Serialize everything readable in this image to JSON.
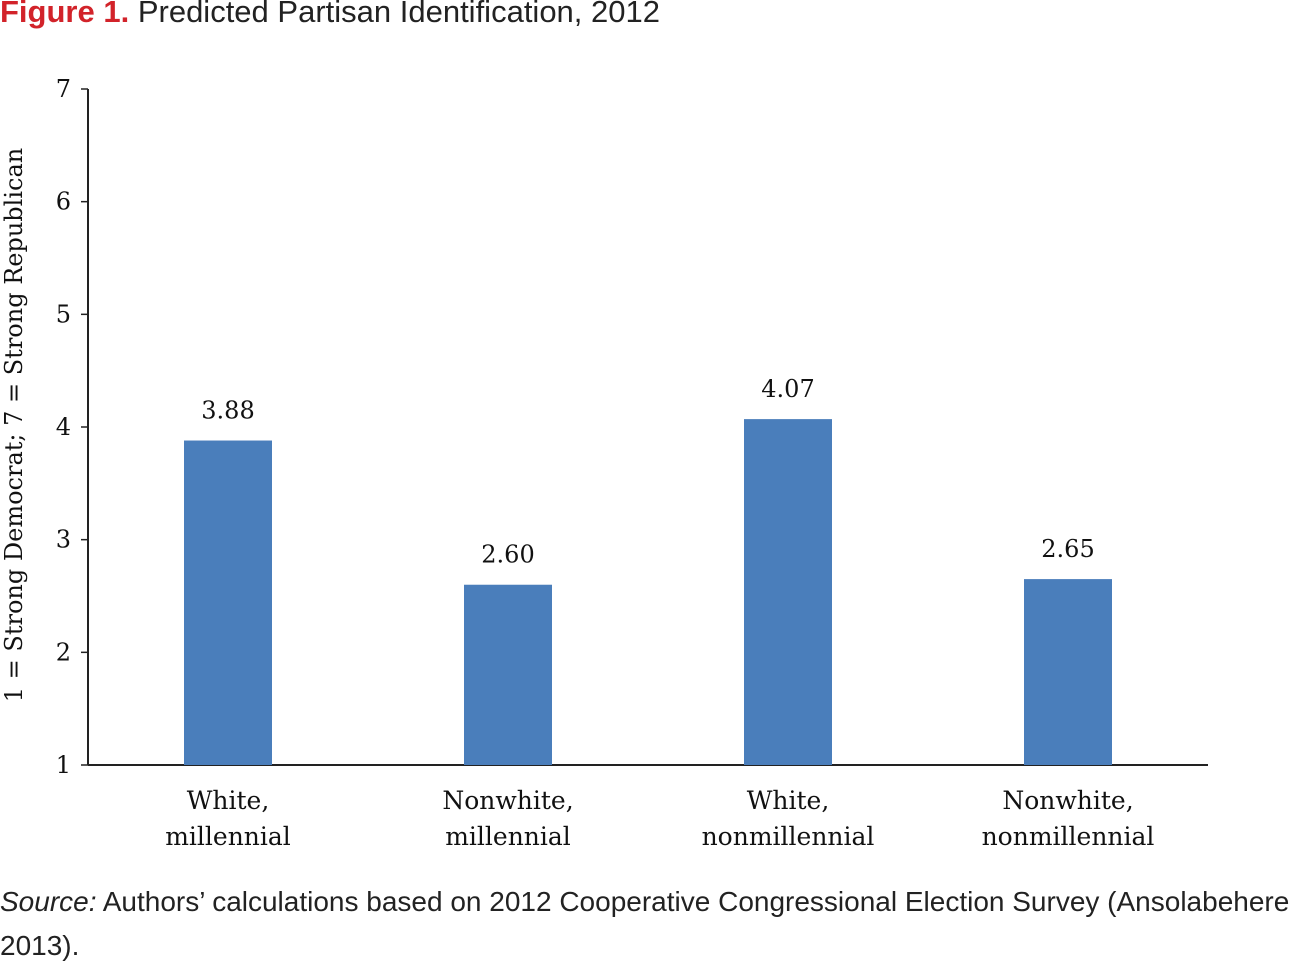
{
  "figure": {
    "label": "Figure 1.",
    "title": "Predicted Partisan Identification, 2012"
  },
  "source": {
    "label": "Source:",
    "text": " Authors’ calculations based on 2012 Cooperative Congressional Election Survey (Ansolabehere 2013)."
  },
  "colors": {
    "bar": "#4a7ebb",
    "axis": "#222222",
    "title_accent": "#d2232a"
  },
  "chart_data": {
    "type": "bar",
    "title": "Predicted Partisan Identification, 2012",
    "xlabel": "",
    "ylabel": "1 = Strong Democrat; 7 = Strong Republican",
    "ylim": [
      1,
      7
    ],
    "yticks": [
      "1",
      "2",
      "3",
      "4",
      "5",
      "6",
      "7"
    ],
    "grid": false,
    "categories": [
      [
        "White,",
        "millennial"
      ],
      [
        "Nonwhite,",
        "millennial"
      ],
      [
        "White,",
        "nonmillennial"
      ],
      [
        "Nonwhite,",
        "nonmillennial"
      ]
    ],
    "values": [
      3.88,
      2.6,
      4.07,
      2.65
    ],
    "data_labels": [
      "3.88",
      "2.60",
      "4.07",
      "2.65"
    ]
  }
}
